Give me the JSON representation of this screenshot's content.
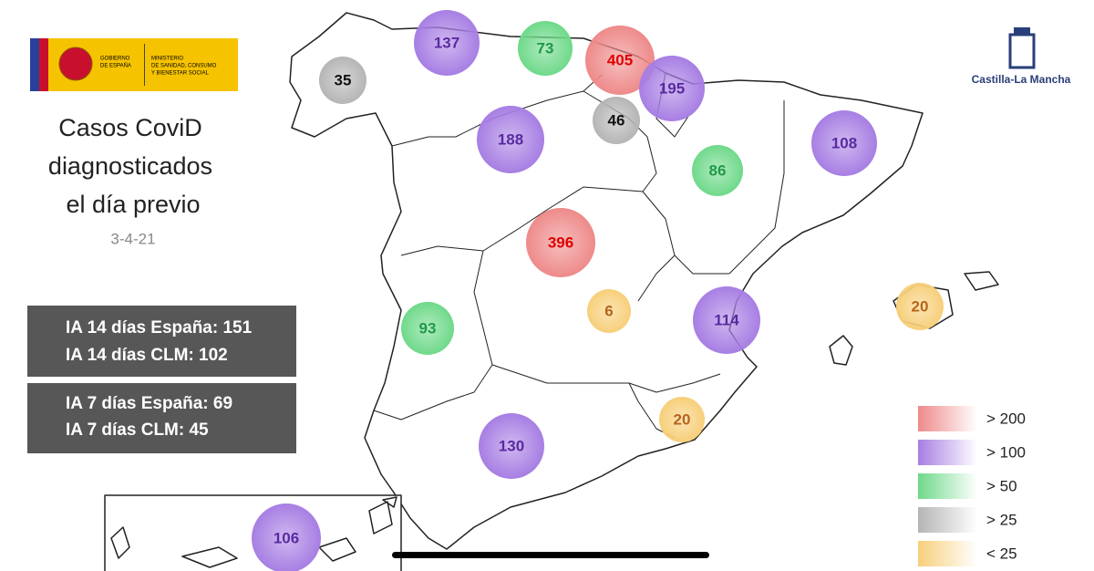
{
  "header": {
    "logo": {
      "gov": [
        "GOBIERNO",
        "DE ESPAÑA"
      ],
      "ministry": [
        "MINISTERIO",
        "DE SANIDAD, CONSUMO",
        "Y BIENESTAR SOCIAL"
      ]
    },
    "title": [
      "Casos CoviD",
      "diagnosticados",
      "el día previo"
    ],
    "date": "3-4-21"
  },
  "stats": [
    [
      "IA 14 días España: 151",
      "IA 14 días CLM: 102"
    ],
    [
      "IA 7 días España: 69",
      "IA 7 días CLM: 45"
    ]
  ],
  "brand": "Castilla-La Mancha",
  "legend": [
    {
      "label": "> 200",
      "color": "#ee8a8a"
    },
    {
      "label": "> 100",
      "color": "#a77ee3"
    },
    {
      "label": "> 50",
      "color": "#6fd98a"
    },
    {
      "label": "> 25",
      "color": "#b5b5b5"
    },
    {
      "label": "< 25",
      "color": "#f7cf7a"
    }
  ],
  "bubbles": [
    {
      "value": 137,
      "color": "#a77ee3"
    },
    {
      "value": 73,
      "color": "#6fd98a"
    },
    {
      "value": 405,
      "color": "#ee8a8a"
    },
    {
      "value": 35,
      "color": "#b5b5b5"
    },
    {
      "value": 195,
      "color": "#a77ee3"
    },
    {
      "value": 46,
      "color": "#b5b5b5"
    },
    {
      "value": 188,
      "color": "#a77ee3"
    },
    {
      "value": 108,
      "color": "#a77ee3"
    },
    {
      "value": 86,
      "color": "#6fd98a"
    },
    {
      "value": 396,
      "color": "#ee8a8a"
    },
    {
      "value": 6,
      "color": "#f7cf7a"
    },
    {
      "value": 93,
      "color": "#6fd98a"
    },
    {
      "value": 114,
      "color": "#a77ee3"
    },
    {
      "value": 20,
      "color": "#f7cf7a"
    },
    {
      "value": 20,
      "color": "#f7cf7a"
    },
    {
      "value": 130,
      "color": "#a77ee3"
    },
    {
      "value": 106,
      "color": "#a77ee3"
    }
  ]
}
